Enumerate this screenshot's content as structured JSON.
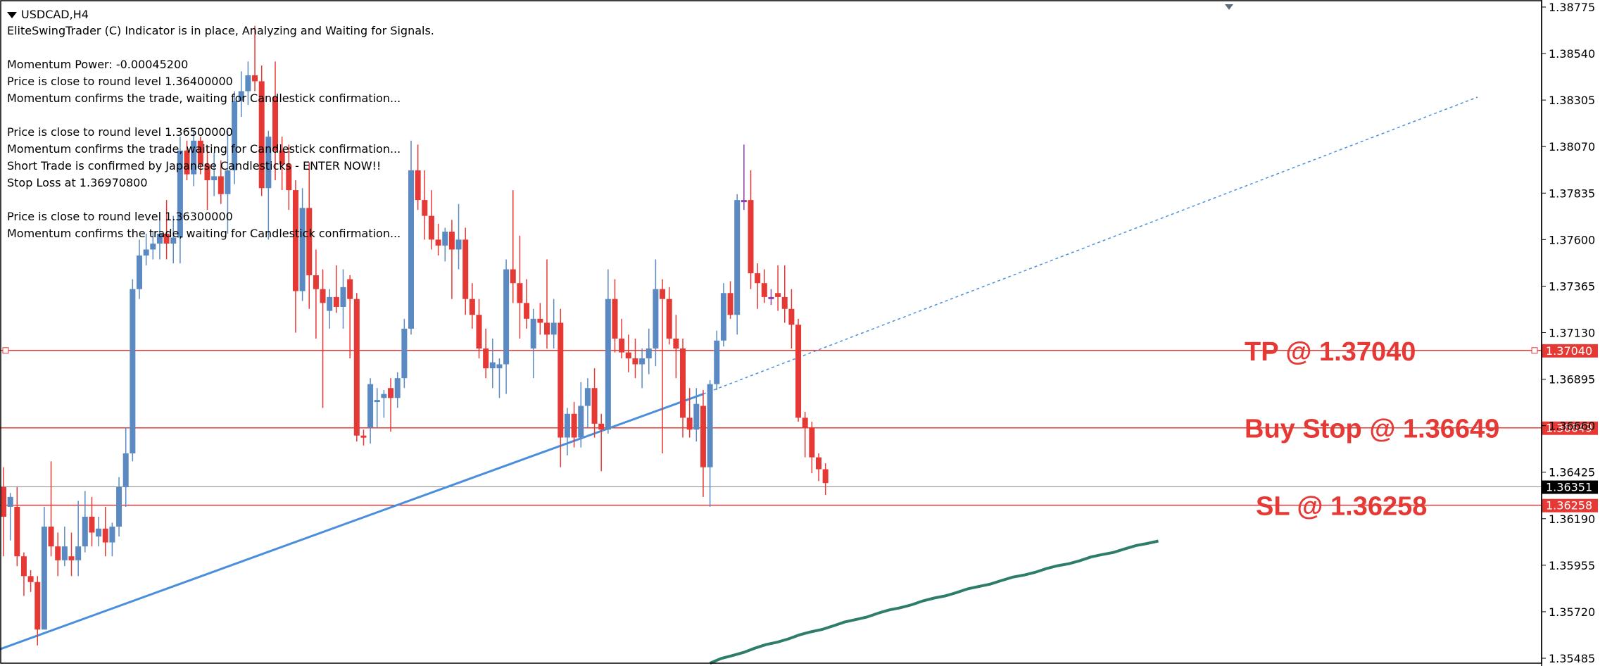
{
  "header": {
    "symbol": "USDCAD,H4",
    "lines": [
      "EliteSwingTrader (C) Indicator is in place, Analyzing and Waiting for Signals.",
      "",
      "Momentum Power: -0.00045200",
      "Price is close to round level 1.36400000",
      "Momentum confirms the trade, waiting for Candlestick confirmation...",
      "",
      "Price is close to round level 1.36500000",
      "Momentum confirms the trade, waiting for Candlestick confirmation...",
      "Short Trade is confirmed by Japanese Candlesticks - ENTER NOW!!",
      "Stop Loss at 1.36970800",
      "",
      "Price is close to round level 1.36300000",
      "Momentum confirms the trade, waiting for Candlestick confirmation..."
    ]
  },
  "chart_data": {
    "type": "candlestick",
    "symbol": "USDCAD",
    "timeframe": "H4",
    "ylim": [
      1.35485,
      1.38775
    ],
    "y_ticks": [
      "1.38775",
      "1.38540",
      "1.38305",
      "1.38070",
      "1.37835",
      "1.37600",
      "1.37365",
      "1.37130",
      "1.36895",
      "1.36660",
      "1.36425",
      "1.36190",
      "1.35955",
      "1.35720",
      "1.35485"
    ],
    "current_price": "1.36351",
    "colors": {
      "bull": "#5b8ac2",
      "bear": "#e53935",
      "doji": "#8c3fa8",
      "level": "#e53935",
      "trendline": "#4a8fdc",
      "ma": "#2e7d6b",
      "current": "#000000"
    },
    "levels": [
      {
        "label": "TP @ 1.37040",
        "tag": "1.37040",
        "price": 1.3704
      },
      {
        "label": "Buy Stop @ 1.36649",
        "tag": "1.36649",
        "price": 1.36649
      },
      {
        "label": "SL @ 1.36258",
        "tag": "1.36258",
        "price": 1.36258
      }
    ],
    "trendline": {
      "start_index": -7,
      "start_price": 1.3545,
      "end_index": 103,
      "end_price": 1.3682,
      "extend_to_index": 217,
      "extend_price": 1.3832
    },
    "moving_average": {
      "start_index": 104,
      "start_price": 1.3546,
      "end_index": 170,
      "end_price": 1.3608
    },
    "candles": [
      {
        "o": 1.3635,
        "h": 1.3645,
        "l": 1.36,
        "c": 1.362
      },
      {
        "o": 1.3625,
        "h": 1.3632,
        "l": 1.3608,
        "c": 1.363
      },
      {
        "o": 1.3625,
        "h": 1.3635,
        "l": 1.3595,
        "c": 1.36
      },
      {
        "o": 1.36,
        "h": 1.3602,
        "l": 1.358,
        "c": 1.359
      },
      {
        "o": 1.359,
        "h": 1.3593,
        "l": 1.3582,
        "c": 1.3587
      },
      {
        "o": 1.3587,
        "h": 1.359,
        "l": 1.3555,
        "c": 1.3563
      },
      {
        "o": 1.3563,
        "h": 1.3625,
        "l": 1.3563,
        "c": 1.3615
      },
      {
        "o": 1.3615,
        "h": 1.3648,
        "l": 1.36,
        "c": 1.3605
      },
      {
        "o": 1.3605,
        "h": 1.3612,
        "l": 1.359,
        "c": 1.3598
      },
      {
        "o": 1.3598,
        "h": 1.3615,
        "l": 1.3595,
        "c": 1.3605
      },
      {
        "o": 1.36,
        "h": 1.3612,
        "l": 1.359,
        "c": 1.3598
      },
      {
        "o": 1.3598,
        "h": 1.3628,
        "l": 1.359,
        "c": 1.3605
      },
      {
        "o": 1.3605,
        "h": 1.3633,
        "l": 1.3602,
        "c": 1.362
      },
      {
        "o": 1.362,
        "h": 1.363,
        "l": 1.3605,
        "c": 1.3612
      },
      {
        "o": 1.361,
        "h": 1.362,
        "l": 1.3605,
        "c": 1.3614
      },
      {
        "o": 1.3614,
        "h": 1.3625,
        "l": 1.36,
        "c": 1.3607
      },
      {
        "o": 1.3607,
        "h": 1.3617,
        "l": 1.36,
        "c": 1.3615
      },
      {
        "o": 1.3615,
        "h": 1.364,
        "l": 1.361,
        "c": 1.3635
      },
      {
        "o": 1.3635,
        "h": 1.3665,
        "l": 1.3625,
        "c": 1.3652
      },
      {
        "o": 1.3652,
        "h": 1.374,
        "l": 1.3648,
        "c": 1.3735
      },
      {
        "o": 1.3735,
        "h": 1.376,
        "l": 1.373,
        "c": 1.3752
      },
      {
        "o": 1.3752,
        "h": 1.3763,
        "l": 1.3747,
        "c": 1.3755
      },
      {
        "o": 1.3755,
        "h": 1.3764,
        "l": 1.375,
        "c": 1.3758
      },
      {
        "o": 1.3758,
        "h": 1.377,
        "l": 1.375,
        "c": 1.3763
      },
      {
        "o": 1.3763,
        "h": 1.378,
        "l": 1.375,
        "c": 1.3758
      },
      {
        "o": 1.3758,
        "h": 1.3772,
        "l": 1.3748,
        "c": 1.3761
      },
      {
        "o": 1.3761,
        "h": 1.3812,
        "l": 1.3748,
        "c": 1.3805
      },
      {
        "o": 1.3805,
        "h": 1.381,
        "l": 1.379,
        "c": 1.3793
      },
      {
        "o": 1.3793,
        "h": 1.3815,
        "l": 1.3787,
        "c": 1.381
      },
      {
        "o": 1.381,
        "h": 1.3812,
        "l": 1.3793,
        "c": 1.3798
      },
      {
        "o": 1.3798,
        "h": 1.3807,
        "l": 1.3775,
        "c": 1.379
      },
      {
        "o": 1.379,
        "h": 1.3804,
        "l": 1.3782,
        "c": 1.3792
      },
      {
        "o": 1.3792,
        "h": 1.38,
        "l": 1.3778,
        "c": 1.3783
      },
      {
        "o": 1.3783,
        "h": 1.3815,
        "l": 1.3763,
        "c": 1.3795
      },
      {
        "o": 1.3795,
        "h": 1.3835,
        "l": 1.3788,
        "c": 1.383
      },
      {
        "o": 1.383,
        "h": 1.3845,
        "l": 1.3822,
        "c": 1.3835
      },
      {
        "o": 1.3835,
        "h": 1.385,
        "l": 1.3828,
        "c": 1.3843
      },
      {
        "o": 1.3843,
        "h": 1.3868,
        "l": 1.3835,
        "c": 1.384
      },
      {
        "o": 1.384,
        "h": 1.3848,
        "l": 1.3782,
        "c": 1.3786
      },
      {
        "o": 1.3786,
        "h": 1.3815,
        "l": 1.376,
        "c": 1.3812
      },
      {
        "o": 1.3832,
        "h": 1.385,
        "l": 1.379,
        "c": 1.3805
      },
      {
        "o": 1.3805,
        "h": 1.3812,
        "l": 1.3785,
        "c": 1.3798
      },
      {
        "o": 1.3798,
        "h": 1.3808,
        "l": 1.3775,
        "c": 1.3785
      },
      {
        "o": 1.3785,
        "h": 1.379,
        "l": 1.3713,
        "c": 1.3734
      },
      {
        "o": 1.3734,
        "h": 1.3786,
        "l": 1.3729,
        "c": 1.3776
      },
      {
        "o": 1.3776,
        "h": 1.3799,
        "l": 1.3725,
        "c": 1.3742
      },
      {
        "o": 1.3742,
        "h": 1.3755,
        "l": 1.371,
        "c": 1.3735
      },
      {
        "o": 1.3735,
        "h": 1.3745,
        "l": 1.3675,
        "c": 1.3728
      },
      {
        "o": 1.3724,
        "h": 1.3735,
        "l": 1.3715,
        "c": 1.3731
      },
      {
        "o": 1.3731,
        "h": 1.3747,
        "l": 1.3723,
        "c": 1.3726
      },
      {
        "o": 1.3726,
        "h": 1.3745,
        "l": 1.3715,
        "c": 1.3736
      },
      {
        "o": 1.374,
        "h": 1.3742,
        "l": 1.37,
        "c": 1.373
      },
      {
        "o": 1.373,
        "h": 1.3733,
        "l": 1.3658,
        "c": 1.3661
      },
      {
        "o": 1.3661,
        "h": 1.3664,
        "l": 1.3656,
        "c": 1.366
      },
      {
        "o": 1.3665,
        "h": 1.369,
        "l": 1.3657,
        "c": 1.3687
      },
      {
        "o": 1.3678,
        "h": 1.3685,
        "l": 1.3665,
        "c": 1.3679
      },
      {
        "o": 1.368,
        "h": 1.3684,
        "l": 1.367,
        "c": 1.3682
      },
      {
        "o": 1.3685,
        "h": 1.369,
        "l": 1.3663,
        "c": 1.368
      },
      {
        "o": 1.368,
        "h": 1.3693,
        "l": 1.3675,
        "c": 1.369
      },
      {
        "o": 1.369,
        "h": 1.372,
        "l": 1.3685,
        "c": 1.3715
      },
      {
        "o": 1.3715,
        "h": 1.381,
        "l": 1.3712,
        "c": 1.3795
      },
      {
        "o": 1.3795,
        "h": 1.3808,
        "l": 1.3775,
        "c": 1.378
      },
      {
        "o": 1.378,
        "h": 1.3795,
        "l": 1.376,
        "c": 1.3772
      },
      {
        "o": 1.3772,
        "h": 1.3785,
        "l": 1.3755,
        "c": 1.376
      },
      {
        "o": 1.376,
        "h": 1.3768,
        "l": 1.3752,
        "c": 1.3757
      },
      {
        "o": 1.3757,
        "h": 1.3766,
        "l": 1.3749,
        "c": 1.3764
      },
      {
        "o": 1.3764,
        "h": 1.377,
        "l": 1.373,
        "c": 1.3755
      },
      {
        "o": 1.3755,
        "h": 1.3778,
        "l": 1.3745,
        "c": 1.376
      },
      {
        "o": 1.376,
        "h": 1.3766,
        "l": 1.3722,
        "c": 1.373
      },
      {
        "o": 1.373,
        "h": 1.3738,
        "l": 1.3715,
        "c": 1.3722
      },
      {
        "o": 1.3722,
        "h": 1.373,
        "l": 1.37,
        "c": 1.3705
      },
      {
        "o": 1.3705,
        "h": 1.3715,
        "l": 1.369,
        "c": 1.3695
      },
      {
        "o": 1.3695,
        "h": 1.371,
        "l": 1.3685,
        "c": 1.3698
      },
      {
        "o": 1.3695,
        "h": 1.37,
        "l": 1.368,
        "c": 1.3697
      },
      {
        "o": 1.3697,
        "h": 1.375,
        "l": 1.3682,
        "c": 1.3745
      },
      {
        "o": 1.3745,
        "h": 1.3785,
        "l": 1.3728,
        "c": 1.3738
      },
      {
        "o": 1.3738,
        "h": 1.3762,
        "l": 1.371,
        "c": 1.3728
      },
      {
        "o": 1.3728,
        "h": 1.374,
        "l": 1.3715,
        "c": 1.372
      },
      {
        "o": 1.3705,
        "h": 1.3725,
        "l": 1.369,
        "c": 1.372
      },
      {
        "o": 1.372,
        "h": 1.3728,
        "l": 1.3712,
        "c": 1.3718
      },
      {
        "o": 1.3718,
        "h": 1.375,
        "l": 1.3705,
        "c": 1.3712
      },
      {
        "o": 1.3712,
        "h": 1.373,
        "l": 1.3705,
        "c": 1.3718
      },
      {
        "o": 1.3718,
        "h": 1.3725,
        "l": 1.3645,
        "c": 1.366
      },
      {
        "o": 1.366,
        "h": 1.3675,
        "l": 1.3651,
        "c": 1.3672
      },
      {
        "o": 1.3672,
        "h": 1.3678,
        "l": 1.3655,
        "c": 1.366
      },
      {
        "o": 1.366,
        "h": 1.3688,
        "l": 1.3655,
        "c": 1.3676
      },
      {
        "o": 1.3676,
        "h": 1.369,
        "l": 1.3665,
        "c": 1.3685
      },
      {
        "o": 1.3685,
        "h": 1.3695,
        "l": 1.366,
        "c": 1.3667
      },
      {
        "o": 1.3667,
        "h": 1.3672,
        "l": 1.3643,
        "c": 1.3664
      },
      {
        "o": 1.3664,
        "h": 1.3745,
        "l": 1.3662,
        "c": 1.373
      },
      {
        "o": 1.373,
        "h": 1.374,
        "l": 1.3703,
        "c": 1.371
      },
      {
        "o": 1.371,
        "h": 1.372,
        "l": 1.37,
        "c": 1.3703
      },
      {
        "o": 1.3703,
        "h": 1.3712,
        "l": 1.3693,
        "c": 1.37
      },
      {
        "o": 1.37,
        "h": 1.371,
        "l": 1.369,
        "c": 1.3697
      },
      {
        "o": 1.3697,
        "h": 1.3705,
        "l": 1.3685,
        "c": 1.37
      },
      {
        "o": 1.37,
        "h": 1.3715,
        "l": 1.3692,
        "c": 1.3705
      },
      {
        "o": 1.3705,
        "h": 1.375,
        "l": 1.3696,
        "c": 1.3735
      },
      {
        "o": 1.3735,
        "h": 1.374,
        "l": 1.3652,
        "c": 1.373
      },
      {
        "o": 1.373,
        "h": 1.3736,
        "l": 1.3707,
        "c": 1.371
      },
      {
        "o": 1.371,
        "h": 1.3722,
        "l": 1.369,
        "c": 1.3705
      },
      {
        "o": 1.3705,
        "h": 1.371,
        "l": 1.366,
        "c": 1.367
      },
      {
        "o": 1.367,
        "h": 1.3685,
        "l": 1.366,
        "c": 1.3664
      },
      {
        "o": 1.3664,
        "h": 1.3685,
        "l": 1.3658,
        "c": 1.3677
      },
      {
        "o": 1.3676,
        "h": 1.3684,
        "l": 1.363,
        "c": 1.3645
      },
      {
        "o": 1.3645,
        "h": 1.3689,
        "l": 1.3625,
        "c": 1.3687
      },
      {
        "o": 1.3687,
        "h": 1.3714,
        "l": 1.3684,
        "c": 1.3709
      },
      {
        "o": 1.3709,
        "h": 1.3738,
        "l": 1.3706,
        "c": 1.3733
      },
      {
        "o": 1.3733,
        "h": 1.3739,
        "l": 1.372,
        "c": 1.3722
      },
      {
        "o": 1.3722,
        "h": 1.3783,
        "l": 1.3712,
        "c": 1.378
      },
      {
        "o": 1.378,
        "h": 1.3808,
        "l": 1.3775,
        "c": 1.378
      },
      {
        "o": 1.378,
        "h": 1.3795,
        "l": 1.3735,
        "c": 1.3743
      },
      {
        "o": 1.3743,
        "h": 1.3748,
        "l": 1.3725,
        "c": 1.3738
      },
      {
        "o": 1.3738,
        "h": 1.3745,
        "l": 1.3728,
        "c": 1.3731
      },
      {
        "o": 1.3731,
        "h": 1.3735,
        "l": 1.3727,
        "c": 1.3731
      },
      {
        "o": 1.3733,
        "h": 1.3747,
        "l": 1.3724,
        "c": 1.3731
      },
      {
        "o": 1.3731,
        "h": 1.3747,
        "l": 1.3718,
        "c": 1.3725
      },
      {
        "o": 1.3725,
        "h": 1.3735,
        "l": 1.3705,
        "c": 1.3717
      },
      {
        "o": 1.3717,
        "h": 1.372,
        "l": 1.3668,
        "c": 1.367
      },
      {
        "o": 1.367,
        "h": 1.3673,
        "l": 1.365,
        "c": 1.3665
      },
      {
        "o": 1.3665,
        "h": 1.3668,
        "l": 1.3642,
        "c": 1.365
      },
      {
        "o": 1.365,
        "h": 1.3652,
        "l": 1.3638,
        "c": 1.3644
      },
      {
        "o": 1.3644,
        "h": 1.3647,
        "l": 1.3631,
        "c": 1.3637
      }
    ]
  }
}
